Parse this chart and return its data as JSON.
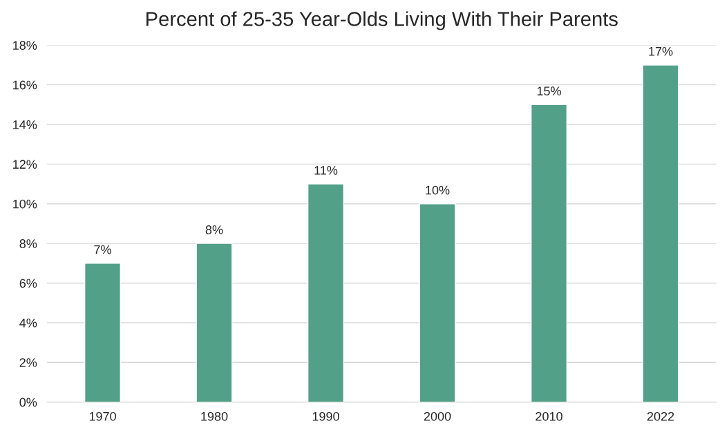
{
  "chart_data": {
    "type": "bar",
    "title": "Percent of 25-35 Year-Olds Living With Their Parents",
    "categories": [
      "1970",
      "1980",
      "1990",
      "2000",
      "2010",
      "2022"
    ],
    "values": [
      7,
      8,
      11,
      10,
      15,
      17
    ],
    "value_labels": [
      "7%",
      "8%",
      "11%",
      "10%",
      "15%",
      "17%"
    ],
    "color": "#52a088",
    "ylim": [
      0,
      18
    ],
    "yticks": [
      {
        "value": 0,
        "label": "0%"
      },
      {
        "value": 2,
        "label": "2%"
      },
      {
        "value": 4,
        "label": "4%"
      },
      {
        "value": 6,
        "label": "6%"
      },
      {
        "value": 8,
        "label": "8%"
      },
      {
        "value": 10,
        "label": "10%"
      },
      {
        "value": 12,
        "label": "12%"
      },
      {
        "value": 14,
        "label": "14%"
      },
      {
        "value": 16,
        "label": "16%"
      },
      {
        "value": 18,
        "label": "18%"
      }
    ],
    "grid": "y",
    "legend": false
  }
}
